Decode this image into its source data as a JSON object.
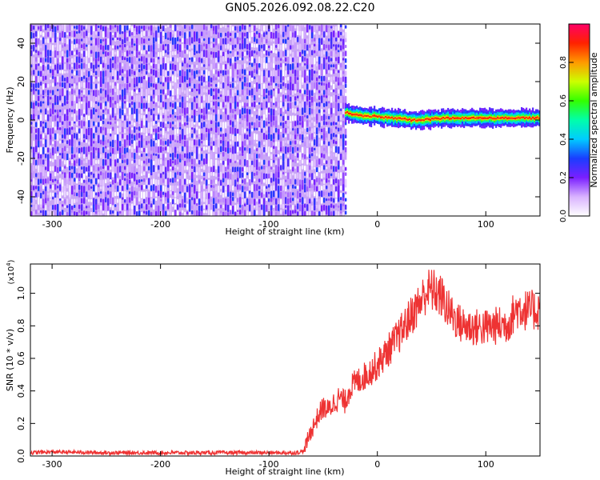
{
  "title": "GN05.2026.092.08.22.C20",
  "chart_data": [
    {
      "type": "heatmap",
      "xlabel": "Height of straight line (km)",
      "ylabel": "Frequency (Hz)",
      "xlim": [
        -320,
        150
      ],
      "ylim": [
        -50,
        50
      ],
      "xticks": [
        -300,
        -200,
        -100,
        0,
        100
      ],
      "yticks": [
        -40,
        -20,
        0,
        20,
        40
      ],
      "noise_region": {
        "x": [
          -320,
          -30
        ],
        "y": [
          -50,
          50
        ],
        "amplitude_range": [
          0.0,
          0.3
        ]
      },
      "signal_trace": {
        "x": [
          -30,
          -25,
          -20,
          -15,
          -10,
          -5,
          0,
          10,
          20,
          30,
          40,
          60,
          80,
          100,
          120,
          130,
          150
        ],
        "y": [
          4,
          3,
          3,
          2,
          2,
          2,
          2,
          1,
          1,
          0,
          0,
          1,
          1,
          1,
          1,
          1,
          1
        ],
        "amplitude": 0.9
      },
      "colorbar": {
        "label": "Normalized spectral amplitude",
        "range": [
          0,
          1
        ],
        "ticks": [
          "0.0",
          "0.2",
          "0.4",
          "0.6",
          "0.8"
        ]
      },
      "grid": false
    },
    {
      "type": "line",
      "xlabel": "Height of straight line (km)",
      "ylabel": "SNR (10 * v/v)",
      "scale_label_base": "(x10",
      "scale_label_exp": "4",
      "scale_label_end": ")",
      "xlim": [
        -320,
        150
      ],
      "ylim": [
        0,
        1.18
      ],
      "xticks": [
        -300,
        -200,
        -100,
        0,
        100
      ],
      "yticks": [
        "0.0",
        "0.2",
        "0.4",
        "0.6",
        "0.8",
        "1.0"
      ],
      "series": [
        {
          "color": "#ee3333",
          "x": [
            -320,
            -300,
            -250,
            -200,
            -150,
            -100,
            -75,
            -68,
            -62,
            -55,
            -50,
            -45,
            -40,
            -35,
            -30,
            -25,
            -20,
            -10,
            0,
            10,
            20,
            30,
            40,
            45,
            50,
            55,
            60,
            65,
            70,
            75,
            80,
            90,
            100,
            110,
            120,
            125,
            130,
            135,
            140,
            150
          ],
          "y": [
            0.02,
            0.025,
            0.02,
            0.02,
            0.02,
            0.02,
            0.02,
            0.03,
            0.14,
            0.24,
            0.3,
            0.28,
            0.33,
            0.36,
            0.33,
            0.42,
            0.45,
            0.5,
            0.56,
            0.65,
            0.74,
            0.85,
            0.95,
            1.01,
            1.02,
            1.0,
            0.97,
            0.9,
            0.86,
            0.82,
            0.8,
            0.79,
            0.79,
            0.8,
            0.81,
            0.87,
            0.91,
            0.9,
            0.89,
            0.9
          ]
        }
      ],
      "grid": false
    }
  ]
}
